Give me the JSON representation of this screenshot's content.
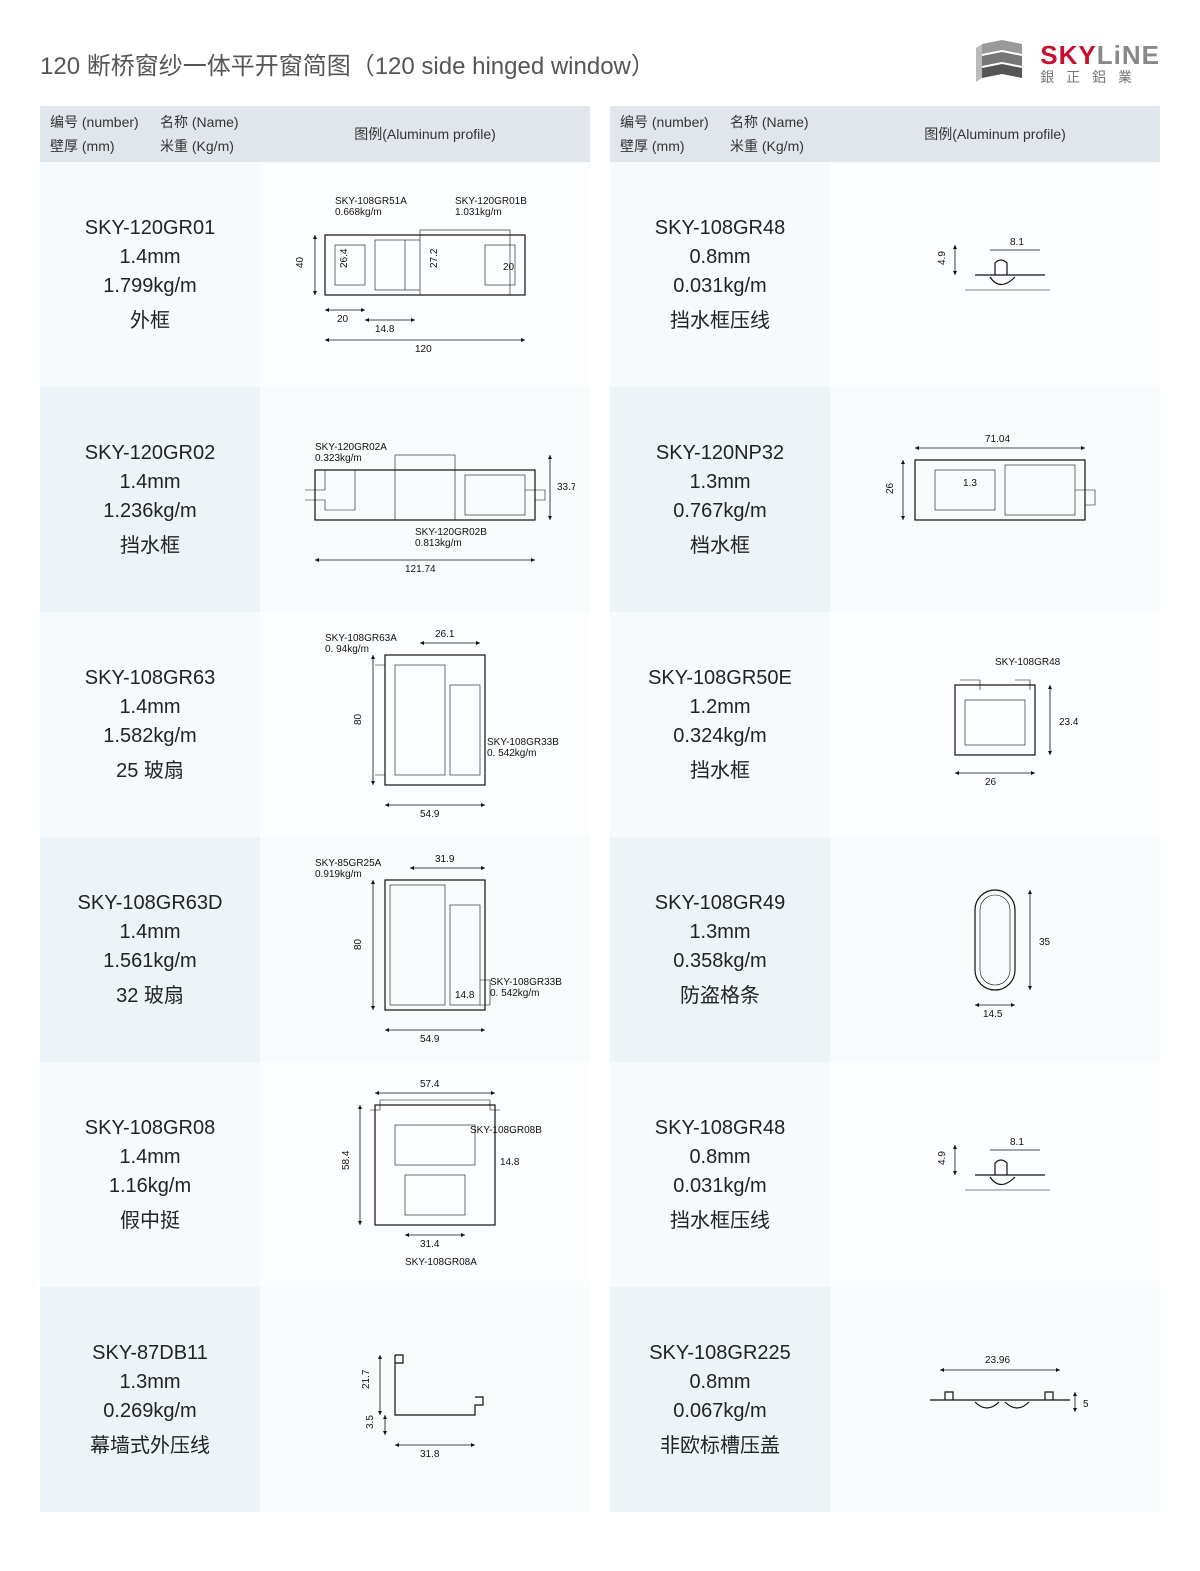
{
  "title": "120 断桥窗纱一体平开窗简图（120 side hinged window）",
  "brand": {
    "name_sky": "SKY",
    "name_line": "LiNE",
    "sub": "銀 正 鋁 業"
  },
  "headers": {
    "number": "编号 (number)",
    "name": "名称 (Name)",
    "thickness": "壁厚 (mm)",
    "weight": "米重 (Kg/m)",
    "profile": "图例(Aluminum profile)"
  },
  "left_rows": [
    {
      "number": "SKY-120GR01",
      "thickness": "1.4mm",
      "weight": "1.799kg/m",
      "name": "外框",
      "diagram": {
        "parts": [
          {
            "label": "SKY-108GR51A",
            "sub": "0.668kg/m"
          },
          {
            "label": "SKY-120GR01B",
            "sub": "1.031kg/m"
          }
        ],
        "dims": {
          "width": "120",
          "left_w": "20",
          "mid_w": "14.8",
          "right_w": "20",
          "height": "40",
          "h1": "26.4",
          "h2": "27.2"
        }
      }
    },
    {
      "number": "SKY-120GR02",
      "thickness": "1.4mm",
      "weight": "1.236kg/m",
      "name": "挡水框",
      "diagram": {
        "parts": [
          {
            "label": "SKY-120GR02A",
            "sub": "0.323kg/m"
          },
          {
            "label": "SKY-120GR02B",
            "sub": "0.813kg/m"
          }
        ],
        "dims": {
          "width": "121.74",
          "height": "33.7"
        }
      }
    },
    {
      "number": "SKY-108GR63",
      "thickness": "1.4mm",
      "weight": "1.582kg/m",
      "name": "25 玻扇",
      "diagram": {
        "parts": [
          {
            "label": "SKY-108GR63A",
            "sub": "0. 94kg/m"
          },
          {
            "label": "SKY-108GR33B",
            "sub": "0. 542kg/m"
          }
        ],
        "dims": {
          "width": "54.9",
          "top_w": "26.1",
          "height": "80"
        }
      }
    },
    {
      "number": "SKY-108GR63D",
      "thickness": "1.4mm",
      "weight": "1.561kg/m",
      "name": "32 玻扇",
      "diagram": {
        "parts": [
          {
            "label": "SKY-85GR25A",
            "sub": "0.919kg/m"
          },
          {
            "label": "SKY-108GR33B",
            "sub": "0. 542kg/m"
          }
        ],
        "dims": {
          "width": "54.9",
          "top_w": "31.9",
          "height": "80",
          "notch": "14.8"
        }
      }
    },
    {
      "number": "SKY-108GR08",
      "thickness": "1.4mm",
      "weight": "1.16kg/m",
      "name": "假中挺",
      "diagram": {
        "parts": [
          {
            "label": "SKY-108GR08B",
            "sub": ""
          },
          {
            "label": "SKY-108GR08A",
            "sub": ""
          }
        ],
        "dims": {
          "width": "57.4",
          "inner_w": "31.4",
          "height": "58.4",
          "h2": "14.8"
        }
      }
    },
    {
      "number": "SKY-87DB11",
      "thickness": "1.3mm",
      "weight": "0.269kg/m",
      "name": "幕墙式外压线",
      "diagram": {
        "dims": {
          "width": "31.8",
          "height": "21.7",
          "offset": "3.5"
        }
      }
    }
  ],
  "right_rows": [
    {
      "number": "SKY-108GR48",
      "thickness": "0.8mm",
      "weight": "0.031kg/m",
      "name": "挡水框压线",
      "diagram": {
        "dims": {
          "width": "8.1",
          "height": "4.9"
        }
      }
    },
    {
      "number": "SKY-120NP32",
      "thickness": "1.3mm",
      "weight": "0.767kg/m",
      "name": "档水框",
      "diagram": {
        "dims": {
          "width": "71.04",
          "height": "26",
          "inner": "1.3"
        }
      }
    },
    {
      "number": "SKY-108GR50E",
      "thickness": "1.2mm",
      "weight": "0.324kg/m",
      "name": "挡水框",
      "diagram": {
        "parts": [
          {
            "label": "SKY-108GR48",
            "sub": ""
          }
        ],
        "dims": {
          "width": "26",
          "height": "23.4"
        }
      }
    },
    {
      "number": "SKY-108GR49",
      "thickness": "1.3mm",
      "weight": "0.358kg/m",
      "name": "防盗格条",
      "diagram": {
        "dims": {
          "width": "14.5",
          "height": "35"
        }
      }
    },
    {
      "number": "SKY-108GR48",
      "thickness": "0.8mm",
      "weight": "0.031kg/m",
      "name": "挡水框压线",
      "diagram": {
        "dims": {
          "width": "8.1",
          "height": "4.9"
        }
      }
    },
    {
      "number": "SKY-108GR225",
      "thickness": "0.8mm",
      "weight": "0.067kg/m",
      "name": "非欧标槽压盖",
      "diagram": {
        "dims": {
          "width": "23.96",
          "height": "5"
        }
      }
    }
  ]
}
